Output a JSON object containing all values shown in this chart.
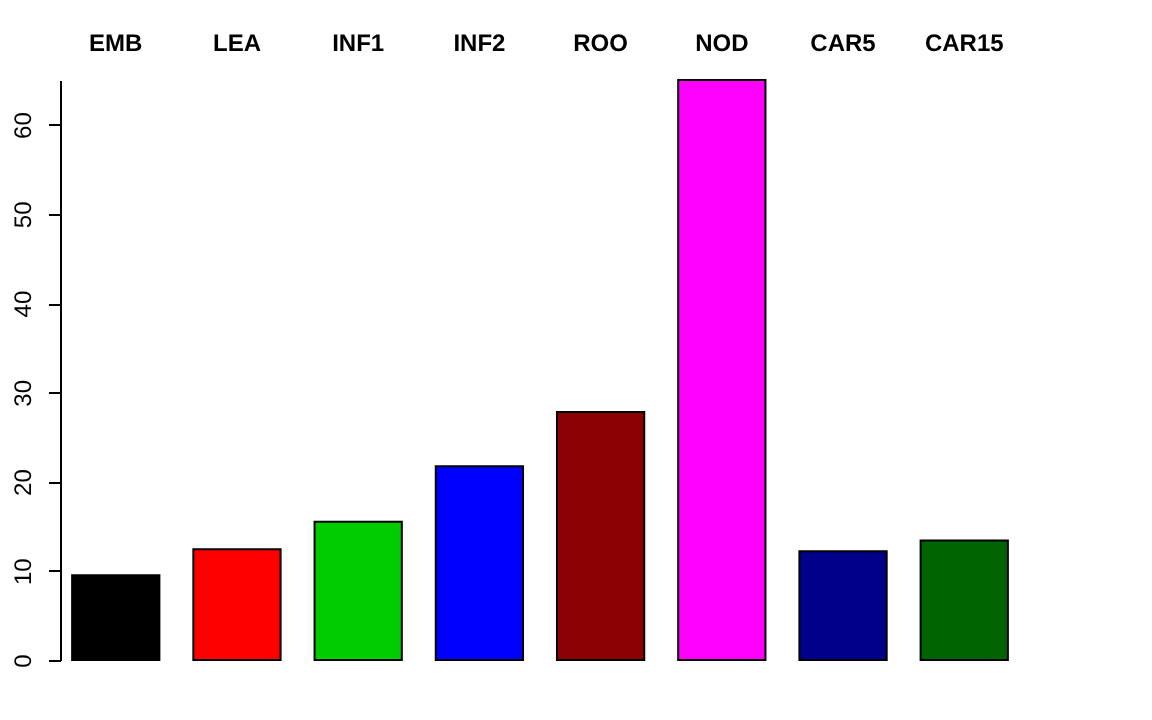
{
  "chart_data": {
    "type": "bar",
    "categories": [
      "EMB",
      "LEA",
      "INF1",
      "INF2",
      "ROO",
      "NOD",
      "CAR5",
      "CAR15"
    ],
    "values": [
      9.5,
      12.4,
      15.5,
      21.7,
      27.8,
      65.0,
      12.2,
      13.4
    ],
    "colors": [
      "#000000",
      "#ff0000",
      "#00cd00",
      "#0000ff",
      "#8b0000",
      "#ff00ff",
      "#00008b",
      "#006400"
    ],
    "ylim": [
      0,
      65
    ],
    "yticks": [
      0,
      10,
      20,
      30,
      40,
      50,
      60
    ]
  }
}
